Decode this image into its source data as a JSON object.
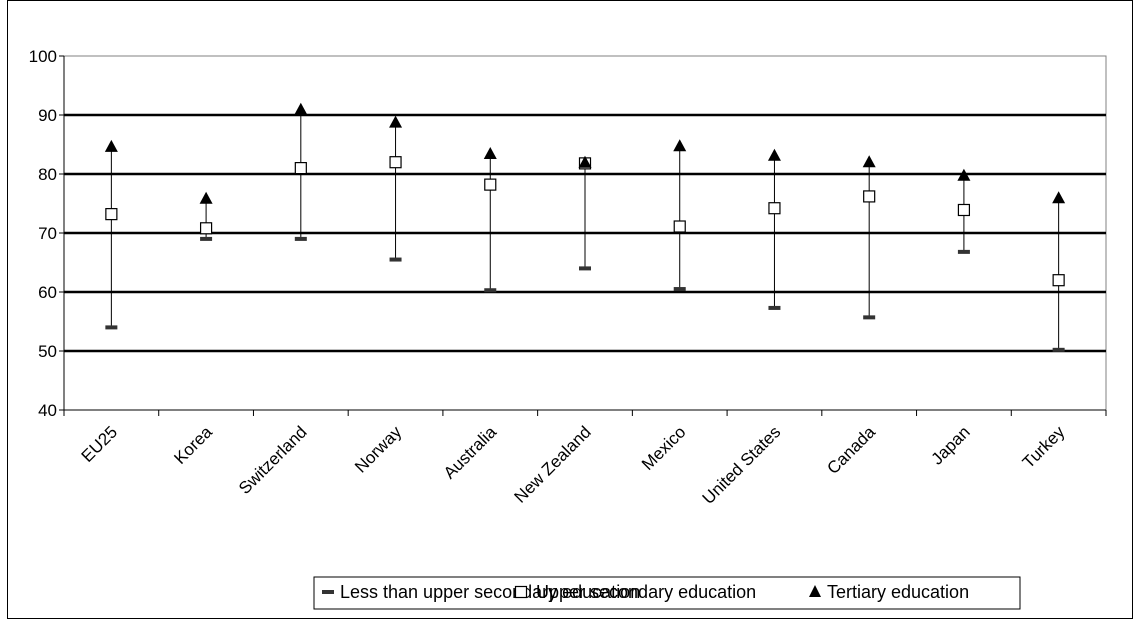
{
  "chart_data": {
    "type": "scatter",
    "categories": [
      "EU25",
      "Korea",
      "Switzerland",
      "Norway",
      "Australia",
      "New Zealand",
      "Mexico",
      "United States",
      "Canada",
      "Japan",
      "Turkey"
    ],
    "series": [
      {
        "name": "Less than upper secondary education",
        "marker": "dash",
        "values": [
          54,
          69,
          69,
          65.5,
          60.3,
          64,
          60.5,
          57.3,
          55.7,
          66.8,
          50.2
        ]
      },
      {
        "name": "Upper secondary education",
        "marker": "square",
        "values": [
          73.2,
          70.8,
          81,
          82,
          78.2,
          81.8,
          71.1,
          74.2,
          76.2,
          73.9,
          62
        ]
      },
      {
        "name": "Tertiary education",
        "marker": "triangle",
        "values": [
          84.6,
          75.8,
          90.9,
          88.7,
          83.4,
          81.9,
          84.7,
          83.1,
          82,
          79.7,
          75.9
        ]
      }
    ],
    "ylim": [
      40,
      100
    ],
    "yticks": [
      40,
      50,
      60,
      70,
      80,
      90,
      100
    ],
    "grid": true,
    "error_bars": "vertical line from minimum to maximum value per category",
    "legend_position": "bottom",
    "title": "",
    "xlabel": "",
    "ylabel": ""
  }
}
